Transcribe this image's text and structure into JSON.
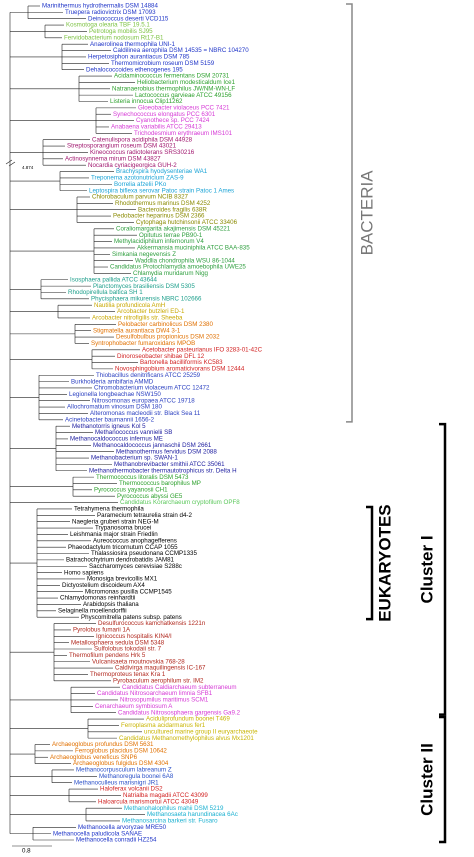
{
  "tree": {
    "clades": [
      {
        "color": "#1f35c8",
        "leaves": [
          "Marinithermus hydrothermalis DSM 14884",
          "Truepera radiovictrix DSM 17093",
          "Deinococcus deserti VCD115"
        ]
      },
      {
        "color": "#7cc242",
        "leaves": [
          "Kosmotoga olearia TBF 19.5.1",
          "Petrotoga mobilis SJ95",
          "Fervidobacterium nodosum Rt17-B1"
        ]
      },
      {
        "color": "#1f35c8",
        "leaves": [
          "Anaerolinea thermophila UNI-1",
          "Caldilinea aerophila DSM 14535 = NBRC 104270",
          "Herpetosiphon aurantiacus DSM 785",
          "Thermomicrobium roseum DSM 5159",
          "Dehalococcoides ethenogenes 195"
        ]
      },
      {
        "color": "#2ca02c",
        "leaves": [
          "Acidaminococcus fermentans DSM 20731",
          "Heliobacterium modesticaldum Ice1",
          "Natranaerobius thermophilus JW/NM-WN-LF",
          "Lactococcus garvieae ATCC 49156",
          "Listeria innocua Clip11262"
        ]
      },
      {
        "color": "#d63ad6",
        "leaves": [
          "Gloeobacter violaceus PCC 7421",
          "Synechococcus elongatus PCC 6301",
          "Cyanothece sp. PCC 7424",
          "Anabaena variabilis ATCC 29413",
          "Trichodesmium erythraeum IMS101"
        ]
      },
      {
        "color": "#a0166e",
        "leaves": [
          "Catenulispora acidiphila DSM 44928",
          "Streptosporangium roseum DSM 43021",
          "Kineococcus radiotolerans SRS30216",
          "Actinosynnema mirum DSM 43827",
          "Nocardia cyriacigeorgica GUH-2"
        ]
      },
      {
        "color": "#1aa3d6",
        "leaves": [
          "Brachyspira hyodysenteriae WA1",
          "Treponema azotonutricium ZAS-9",
          "Borrelia afzelii PKo",
          "Leptospira biflexa serovar Patoc strain Patoc 1 Ames"
        ]
      },
      {
        "color": "#8a8a00",
        "leaves": [
          "Chlorobaculum parvum NCIB 8327",
          "Rhodothermus marinus DSM 4252",
          "Bacteroides fragilis 638R",
          "Pedobacter heparinus DSM 2366",
          "Cytophaga hutchinsonii ATCC 33406"
        ]
      },
      {
        "color": "#2e9e3e",
        "leaves": [
          "Coraliomargarita akajimensis DSM 45221",
          "Opitutus terrae PB90-1",
          "Methylacidiphilum infernorum V4",
          "Akkermansia muciniphila ATCC BAA-835",
          "Simkania negevensis Z",
          "Waddlia chondrophila WSU 86-1044",
          "Candidatus Protochlamydia amoebophila UWE25",
          "Chlamydia muridarum Nigg"
        ]
      },
      {
        "color": "#1b9e8a",
        "leaves": [
          "Isosphaera pallida ATCC 43644",
          "Planctomyces brasiliensis DSM 5305",
          "Rhodopirellula baltica SH 1",
          "Phycisphaera mikurensis NBRC 102666"
        ]
      },
      {
        "color": "#c8a800",
        "leaves": [
          "Nautilia profundicola AmH",
          "Arcobacter butzleri ED-1",
          "Arcobacter nitrofigilis str. Sheeba"
        ]
      },
      {
        "color": "#e07000",
        "leaves": [
          "Pelobacter carbinolicus DSM 2380",
          "Stigmatella aurantiaca DW4 3-1",
          "Desulfobulbus propionicus DSM 2032",
          "Syntrophobacter fumaroxidans MPOB"
        ]
      },
      {
        "color": "#d11f1f",
        "leaves": [
          "Acetobacter pasteurianus IFO 3283-01-42C",
          "Dinoroseobacter shibae DFL 12",
          "Bartonella bacilliformis KC583",
          "Novosphingobium aromaticivorans DSM 12444"
        ]
      },
      {
        "color": "#2a3fc0",
        "leaves": [
          "Thiobacillus denitrificans ATCC 25259",
          "Burkholderia ambifaria AMMD",
          "Chromobacterium violaceum ATCC 12472",
          "Legionella longbeachae NSW150",
          "Nitrosomonas europaea ATCC 19718",
          "Allochromatium vinosum DSM 180",
          "Alteromonas macleodii str. Black Sea 11",
          "Acinetobacter baumannii 1656-2"
        ]
      },
      {
        "color": "#1a1a9e",
        "leaves": [
          "Methanotorris igneus Kol 5",
          "Methanococcus vannielii SB",
          "Methanocaldococcus infernus ME",
          "Methanocaldococcus jannaschii DSM 2661",
          "Methanothermus fervidus DSM 2088",
          "Methanobacterium sp. SWAN-1",
          "Methanobrevibacter smithii ATCC 35061",
          "Methanothermobacter thermautotrophicus str. Delta H"
        ]
      },
      {
        "color": "#2ca02c",
        "leaves": [
          "Thermococcus litoralis DSM 5473",
          "Thermococcus barophilus MP",
          "Pyrococcus yayanosii CH1",
          "Pyrococcus abyssi GE5"
        ]
      },
      {
        "color": "#5cc85c",
        "leaves": [
          "Candidatus Korarchaeum cryptofilum OPF8"
        ]
      },
      {
        "color": "#000000",
        "leaves": [
          "Tetrahymena thermophila",
          "Paramecium tetraurelia strain d4-2",
          "Naegleria gruberi strain NEG-M",
          "Trypanosoma brucei",
          "Leishmania major strain Friedlin",
          "Aureococcus anophagefferens",
          "Phaeodactylum tricornutum CCAP 1055",
          "Thalassiosira pseudonana CCMP1335",
          "Batrachochytrium dendrobatidis JAM81",
          "Saccharomyces cerevisiae S288c",
          "Homo sapiens",
          "Monosiga brevicollis MX1",
          "Dictyostelium discoideum AX4",
          "Micromonas pusilla CCMP1545",
          "Chlamydomonas reinhardtii",
          "Arabidopsis thaliana",
          "Selaginella moellendorffii",
          "Physcomitrella patens subsp. patens"
        ]
      },
      {
        "color": "#b0281e",
        "leaves": [
          "Desulfurococcus kamchatkensis 1221n",
          "Pyrolobus fumarii 1A",
          "Ignicoccus hospitalis KIN4/I",
          "Metallosphaera sedula DSM 5348",
          "Sulfolobus tokodaii str. 7",
          "Thermofilum pendens Hrk 5",
          "Vulcanisaeta moutnovskia 768-28",
          "Caldivirga maquilingensis IC-167",
          "Thermoproteus tenax Kra 1",
          "Pyrobaculum aerophilum str. IM2"
        ]
      },
      {
        "color": "#d63ad6",
        "leaves": [
          "Candidatus Caldiarchaeum subterraneum",
          "Candidatus Nitrosoarchaeum limnia SFB1",
          "Nitrosopumilus maritimus SCM1",
          "Cenarchaeum symbiosum A",
          "Candidatus Nitrososphaera gargensis Ga9.2"
        ]
      },
      {
        "color": "#c8b400",
        "leaves": [
          "Aciduliprofundum boonei T469",
          "Ferroplasma acidarmanus fer1",
          "uncultured marine group II euryarchaeote",
          "Candidatus Methanomethylophilus alvus Mx1201"
        ]
      },
      {
        "color": "#e07000",
        "leaves": [
          "Archaeoglobus profundus DSM 5631",
          "Ferroglobus placidus DSM 10642",
          "Archaeoglobus veneficus SNP6",
          "Archaeoglobus fulgidus DSM 4304"
        ]
      },
      {
        "color": "#2a50c8",
        "leaves": [
          "Methanocorpusculum labreanum Z",
          "Methanoregula boonei 6A8",
          "Methanoculleus marisnigri JR1"
        ]
      },
      {
        "color": "#d11f1f",
        "leaves": [
          "Haloferax volcanii DS2",
          "Natrialba magadii ATCC 43099",
          "Haloarcula marismortui ATCC 43049"
        ]
      },
      {
        "color": "#1ab0d0",
        "leaves": [
          "Methanohalophilus mahii DSM 5219",
          "Methanosaeta harundinacea 6Ac",
          "Methanosarcina barkeri str. Fusaro"
        ]
      },
      {
        "color": "#1f35c8",
        "leaves": [
          "Methanocella arvoryzae MRE50",
          "Methanocella paludicola SANAE",
          "Methanocella conradii HZ254"
        ]
      }
    ],
    "groups": [
      "BACTERIA",
      "EUKARYOTES",
      "Cluster I",
      "Cluster II"
    ],
    "branch_length": "4.874",
    "scale": "0.8"
  }
}
